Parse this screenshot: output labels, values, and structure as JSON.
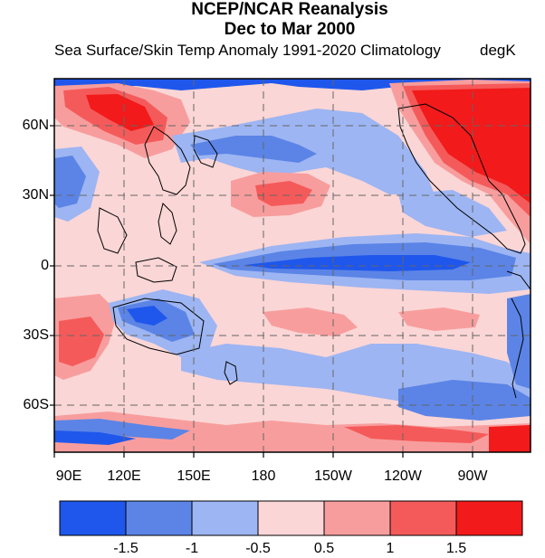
{
  "header": {
    "title_line1": "NCEP/NCAR Reanalysis",
    "title_line2": "Dec to Mar 2000",
    "subtitle": "Sea Surface/Skin Temp Anomaly  1991-2020 Climatology",
    "units": "degK"
  },
  "axes": {
    "y_ticks": [
      "60N",
      "30N",
      "0",
      "30S",
      "60S"
    ],
    "x_ticks": [
      "90E",
      "120E",
      "150E",
      "180",
      "150W",
      "120W",
      "90W"
    ]
  },
  "legend": {
    "colors": [
      "#1f57ec",
      "#5b84e6",
      "#9db5f2",
      "#fbd6d6",
      "#f89d9d",
      "#f55a5a",
      "#f21a1a"
    ],
    "tick_labels": [
      "-1.5",
      "-1",
      "-0.5",
      "0.5",
      "1",
      "1.5"
    ]
  },
  "palette": {
    "strong_warm": "#f21a1a",
    "mid_warm": "#f55a5a",
    "light_warm": "#f89d9d",
    "neutral_warm": "#fbd6d6",
    "neutral_cold": "#9db5f2",
    "mid_cold": "#5b84e6",
    "strong_cold": "#1f57ec"
  }
}
